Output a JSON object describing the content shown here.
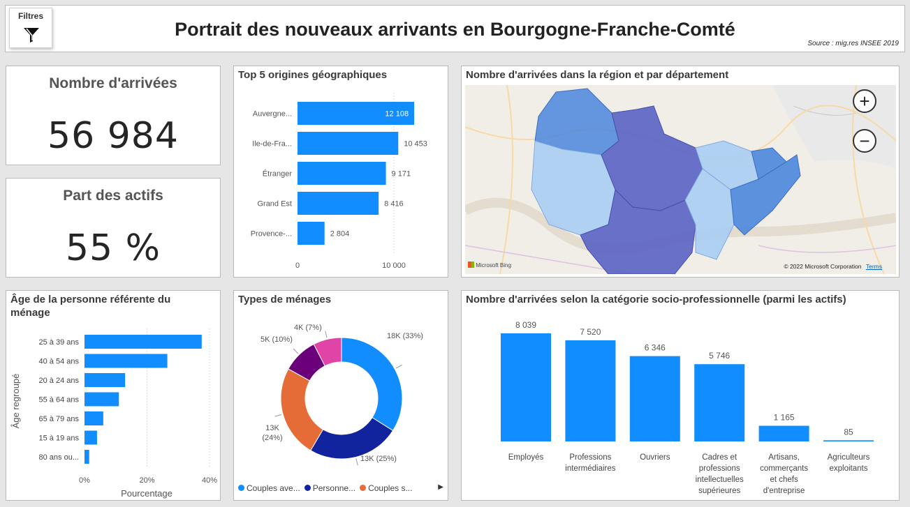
{
  "header": {
    "title": "Portrait des nouveaux arrivants en Bourgogne-Franche-Comté",
    "source": "Source : mig.res INSEE 2019",
    "filter_label": "Filtres"
  },
  "kpis": {
    "arrivals_title": "Nombre d'arrivées",
    "arrivals_value": "56 984",
    "actifs_title": "Part des actifs",
    "actifs_value": "55 %"
  },
  "top5": {
    "title": "Top 5 origines géographiques",
    "axis_min_label": "0",
    "axis_max_label": "10 000"
  },
  "map": {
    "title": "Nombre d'arrivées dans la région et par département",
    "attribution": "© 2022 Microsoft Corporation",
    "terms": "Terms",
    "bing": "Microsoft Bing",
    "zoom_in": "+",
    "zoom_out": "−",
    "colors": {
      "dark": "#5a62c4",
      "mid": "#4a86dc",
      "light": "#a9cdf3"
    }
  },
  "age": {
    "title": "Âge de la personne référente du ménage",
    "ylabel": "Âge regroupé",
    "xlabel": "Pourcentage"
  },
  "menages": {
    "title": "Types de ménages",
    "legend": [
      "Couples ave...",
      "Personne...",
      "Couples s..."
    ],
    "legend_arrow": "▶"
  },
  "csp": {
    "title": "Nombre d'arrivées selon la catégorie socio-professionnelle (parmi les actifs)"
  },
  "colors": {
    "bar": "#118dff",
    "donut": [
      "#118dff",
      "#12239e",
      "#e66c37",
      "#6b007b",
      "#e044a7"
    ]
  },
  "chart_data": [
    {
      "type": "bar",
      "orientation": "horizontal",
      "title": "Top 5 origines géographiques",
      "categories": [
        "Auvergne...",
        "Ile-de-Fra...",
        "Étranger",
        "Grand Est",
        "Provence-..."
      ],
      "values": [
        12108,
        10453,
        9171,
        8416,
        2804
      ],
      "value_labels": [
        "12 108",
        "10 453",
        "9 171",
        "8 416",
        "2 804"
      ],
      "xlim": [
        0,
        12500
      ],
      "ticks": [
        "0",
        "10 000"
      ]
    },
    {
      "type": "bar",
      "orientation": "horizontal",
      "title": "Âge de la personne référente du ménage",
      "categories": [
        "25 à 39 ans",
        "40 à 54 ans",
        "20 à 24 ans",
        "55 à 64 ans",
        "65 à 79 ans",
        "15 à 19 ans",
        "80 ans ou..."
      ],
      "values": [
        37.5,
        26.5,
        13.0,
        11.0,
        6.0,
        4.0,
        1.5
      ],
      "xlim": [
        0,
        40
      ],
      "ticks": [
        "0%",
        "20%",
        "40%"
      ],
      "ylabel": "Âge regroupé",
      "xlabel": "Pourcentage"
    },
    {
      "type": "pie",
      "title": "Types de ménages",
      "donut": true,
      "values": [
        18,
        13,
        13,
        5,
        4
      ],
      "labels": [
        "18K (33%)",
        "13K (25%)",
        "13K\n(24%)",
        "5K (10%)",
        "4K (7%)"
      ],
      "legend": [
        "Couples ave...",
        "Personne...",
        "Couples s..."
      ]
    },
    {
      "type": "bar",
      "title": "Nombre d'arrivées selon la catégorie socio-professionnelle (parmi les actifs)",
      "categories": [
        "Employés",
        "Professions intermédiaires",
        "Ouvriers",
        "Cadres et professions intellectuelles supérieures",
        "Artisans, commerçants et chefs d'entreprise",
        "Agriculteurs exploitants"
      ],
      "category_lines": [
        [
          "Employés"
        ],
        [
          "Professions",
          "intermédiaires"
        ],
        [
          "Ouvriers"
        ],
        [
          "Cadres et",
          "professions",
          "intellectuelles",
          "supérieures"
        ],
        [
          "Artisans,",
          "commerçants",
          "et chefs",
          "d'entreprise"
        ],
        [
          "Agriculteurs",
          "exploitants"
        ]
      ],
      "values": [
        8039,
        7520,
        6346,
        5746,
        1165,
        85
      ],
      "value_labels": [
        "8 039",
        "7 520",
        "6 346",
        "5 746",
        "1 165",
        "85"
      ],
      "ylim": [
        0,
        8039
      ]
    }
  ]
}
